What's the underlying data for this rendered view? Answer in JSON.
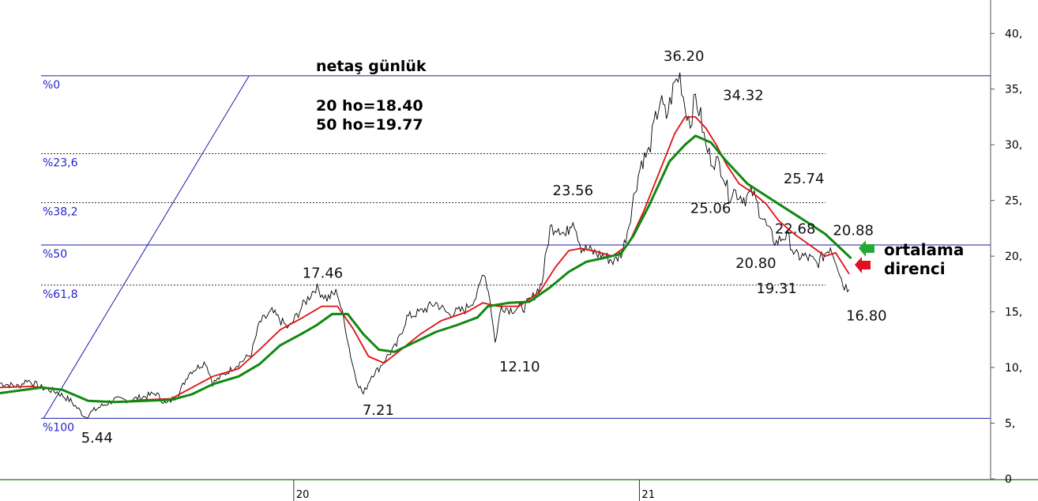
{
  "chart_data": {
    "type": "line",
    "title": "netaş günlük",
    "ma_notes": [
      "20 ho=18.40",
      "50 ho=19.77"
    ],
    "ylim": [
      0,
      43
    ],
    "y_ticks": [
      {
        "v": 40,
        "label": "40,"
      },
      {
        "v": 35,
        "label": "35,"
      },
      {
        "v": 30,
        "label": "30,"
      },
      {
        "v": 25,
        "label": "25,"
      },
      {
        "v": 20,
        "label": "20,"
      },
      {
        "v": 15,
        "label": "15,"
      },
      {
        "v": 10,
        "label": "10,"
      },
      {
        "v": 5,
        "label": "5,"
      },
      {
        "v": 0,
        "label": "0"
      }
    ],
    "x_ticks": [
      {
        "t": 0.283,
        "label": "20"
      },
      {
        "t": 0.616,
        "label": "21"
      }
    ],
    "fib_levels": [
      {
        "label": "%0",
        "value": 36.2,
        "style": "solid"
      },
      {
        "label": "%23,6",
        "value": 29.2,
        "style": "dashed"
      },
      {
        "label": "%38,2",
        "value": 24.8,
        "style": "dashed"
      },
      {
        "label": "%50",
        "value": 21.0,
        "style": "solid"
      },
      {
        "label": "%61,8",
        "value": 17.4,
        "style": "dashed"
      },
      {
        "label": "%100",
        "value": 5.44,
        "style": "solid"
      }
    ],
    "fib_anchor": {
      "low": {
        "t": 0.042,
        "v": 5.44
      },
      "high": {
        "t": 0.24,
        "v": 36.2
      }
    },
    "price": [
      [
        0.0,
        8.6
      ],
      [
        0.018,
        8.3
      ],
      [
        0.026,
        8.9
      ],
      [
        0.04,
        8.2
      ],
      [
        0.055,
        7.8
      ],
      [
        0.068,
        7.0
      ],
      [
        0.082,
        5.6
      ],
      [
        0.095,
        6.4
      ],
      [
        0.11,
        7.1
      ],
      [
        0.125,
        7.1
      ],
      [
        0.14,
        7.4
      ],
      [
        0.15,
        7.7
      ],
      [
        0.16,
        6.7
      ],
      [
        0.172,
        7.6
      ],
      [
        0.182,
        9.5
      ],
      [
        0.198,
        10.5
      ],
      [
        0.205,
        8.6
      ],
      [
        0.222,
        9.8
      ],
      [
        0.242,
        11.2
      ],
      [
        0.25,
        14.0
      ],
      [
        0.262,
        15.0
      ],
      [
        0.278,
        13.5
      ],
      [
        0.292,
        15.6
      ],
      [
        0.304,
        17.2
      ],
      [
        0.315,
        16.2
      ],
      [
        0.325,
        16.8
      ],
      [
        0.333,
        13.5
      ],
      [
        0.338,
        11.0
      ],
      [
        0.343,
        9.0
      ],
      [
        0.35,
        7.6
      ],
      [
        0.358,
        9.3
      ],
      [
        0.365,
        9.9
      ],
      [
        0.373,
        11.0
      ],
      [
        0.382,
        12.0
      ],
      [
        0.392,
        14.5
      ],
      [
        0.405,
        15.0
      ],
      [
        0.42,
        15.8
      ],
      [
        0.432,
        14.8
      ],
      [
        0.448,
        15.2
      ],
      [
        0.46,
        16.5
      ],
      [
        0.466,
        18.8
      ],
      [
        0.472,
        16.2
      ],
      [
        0.477,
        12.2
      ],
      [
        0.483,
        15.5
      ],
      [
        0.492,
        15.2
      ],
      [
        0.505,
        15.4
      ],
      [
        0.515,
        16.5
      ],
      [
        0.522,
        17.6
      ],
      [
        0.53,
        22.5
      ],
      [
        0.538,
        22.7
      ],
      [
        0.545,
        21.8
      ],
      [
        0.552,
        23.5
      ],
      [
        0.56,
        20.8
      ],
      [
        0.57,
        20.4
      ],
      [
        0.582,
        20.0
      ],
      [
        0.592,
        19.5
      ],
      [
        0.6,
        20.5
      ],
      [
        0.606,
        23.0
      ],
      [
        0.612,
        26.0
      ],
      [
        0.618,
        28.5
      ],
      [
        0.625,
        29.3
      ],
      [
        0.63,
        31.6
      ],
      [
        0.636,
        34.0
      ],
      [
        0.642,
        32.5
      ],
      [
        0.65,
        35.5
      ],
      [
        0.655,
        36.2
      ],
      [
        0.66,
        33.5
      ],
      [
        0.665,
        32.0
      ],
      [
        0.67,
        34.3
      ],
      [
        0.675,
        32.5
      ],
      [
        0.68,
        29.8
      ],
      [
        0.685,
        28.8
      ],
      [
        0.69,
        28.5
      ],
      [
        0.696,
        27.8
      ],
      [
        0.702,
        25.5
      ],
      [
        0.707,
        25.9
      ],
      [
        0.712,
        25.5
      ],
      [
        0.718,
        25.2
      ],
      [
        0.725,
        25.7
      ],
      [
        0.73,
        24.5
      ],
      [
        0.737,
        23.0
      ],
      [
        0.742,
        22.0
      ],
      [
        0.748,
        21.2
      ],
      [
        0.755,
        21.8
      ],
      [
        0.76,
        21.6
      ],
      [
        0.766,
        20.0
      ],
      [
        0.773,
        20.0
      ],
      [
        0.78,
        19.8
      ],
      [
        0.787,
        19.3
      ],
      [
        0.793,
        20.0
      ],
      [
        0.8,
        20.9
      ],
      [
        0.806,
        19.5
      ],
      [
        0.812,
        17.5
      ],
      [
        0.818,
        17.0
      ]
    ],
    "series": [
      {
        "name": "20 ho",
        "color": "#e01010",
        "values": [
          [
            0.0,
            8.2
          ],
          [
            0.03,
            8.3
          ],
          [
            0.06,
            8.0
          ],
          [
            0.085,
            7.0
          ],
          [
            0.11,
            6.9
          ],
          [
            0.14,
            7.1
          ],
          [
            0.165,
            7.2
          ],
          [
            0.185,
            8.2
          ],
          [
            0.205,
            9.2
          ],
          [
            0.23,
            9.9
          ],
          [
            0.25,
            11.6
          ],
          [
            0.27,
            13.4
          ],
          [
            0.29,
            14.4
          ],
          [
            0.31,
            15.5
          ],
          [
            0.325,
            15.5
          ],
          [
            0.34,
            13.5
          ],
          [
            0.355,
            11.0
          ],
          [
            0.37,
            10.4
          ],
          [
            0.385,
            11.5
          ],
          [
            0.405,
            13.0
          ],
          [
            0.425,
            14.2
          ],
          [
            0.45,
            15.0
          ],
          [
            0.465,
            15.8
          ],
          [
            0.48,
            15.5
          ],
          [
            0.5,
            15.5
          ],
          [
            0.52,
            16.8
          ],
          [
            0.535,
            19.0
          ],
          [
            0.548,
            20.5
          ],
          [
            0.56,
            20.7
          ],
          [
            0.575,
            20.4
          ],
          [
            0.59,
            20.0
          ],
          [
            0.605,
            21.0
          ],
          [
            0.62,
            24.0
          ],
          [
            0.635,
            27.5
          ],
          [
            0.65,
            31.0
          ],
          [
            0.66,
            32.5
          ],
          [
            0.67,
            32.5
          ],
          [
            0.68,
            31.5
          ],
          [
            0.69,
            30.0
          ],
          [
            0.7,
            28.2
          ],
          [
            0.712,
            26.5
          ],
          [
            0.725,
            25.7
          ],
          [
            0.738,
            24.7
          ],
          [
            0.75,
            23.2
          ],
          [
            0.765,
            22.0
          ],
          [
            0.78,
            21.0
          ],
          [
            0.795,
            20.0
          ],
          [
            0.805,
            20.3
          ],
          [
            0.818,
            18.4
          ]
        ]
      },
      {
        "name": "50 ho",
        "color": "#118811",
        "values": [
          [
            0.0,
            7.7
          ],
          [
            0.04,
            8.2
          ],
          [
            0.06,
            8.0
          ],
          [
            0.085,
            7.0
          ],
          [
            0.11,
            6.9
          ],
          [
            0.14,
            7.0
          ],
          [
            0.165,
            7.1
          ],
          [
            0.185,
            7.6
          ],
          [
            0.205,
            8.5
          ],
          [
            0.23,
            9.2
          ],
          [
            0.25,
            10.3
          ],
          [
            0.27,
            12.0
          ],
          [
            0.29,
            13.0
          ],
          [
            0.305,
            13.8
          ],
          [
            0.32,
            14.8
          ],
          [
            0.335,
            14.8
          ],
          [
            0.35,
            13.0
          ],
          [
            0.365,
            11.6
          ],
          [
            0.38,
            11.4
          ],
          [
            0.4,
            12.3
          ],
          [
            0.42,
            13.2
          ],
          [
            0.44,
            13.8
          ],
          [
            0.46,
            14.5
          ],
          [
            0.47,
            15.5
          ],
          [
            0.49,
            15.8
          ],
          [
            0.51,
            15.9
          ],
          [
            0.53,
            17.2
          ],
          [
            0.548,
            18.6
          ],
          [
            0.565,
            19.5
          ],
          [
            0.58,
            19.8
          ],
          [
            0.598,
            20.2
          ],
          [
            0.61,
            21.8
          ],
          [
            0.625,
            24.5
          ],
          [
            0.645,
            28.5
          ],
          [
            0.66,
            30.0
          ],
          [
            0.67,
            30.8
          ],
          [
            0.685,
            30.2
          ],
          [
            0.7,
            28.5
          ],
          [
            0.72,
            26.5
          ],
          [
            0.745,
            25.0
          ],
          [
            0.77,
            23.5
          ],
          [
            0.795,
            22.0
          ],
          [
            0.82,
            19.8
          ]
        ]
      }
    ],
    "annotations": [
      {
        "text": "36.20",
        "t": 0.655,
        "v": 36.2,
        "dx": 5,
        "dy": -19
      },
      {
        "text": "34.32",
        "t": 0.675,
        "v": 34.3,
        "dx": 54,
        "dy": 4
      },
      {
        "text": "23.56",
        "t": 0.552,
        "v": 23.5,
        "dx": 0,
        "dy": -28
      },
      {
        "text": "25.74",
        "t": 0.725,
        "v": 25.7,
        "dx": 65,
        "dy": -12
      },
      {
        "text": "25.06",
        "t": 0.712,
        "v": 25.5,
        "dx": -36,
        "dy": 23
      },
      {
        "text": "22.68",
        "t": 0.76,
        "v": 21.6,
        "dx": 8,
        "dy": -6
      },
      {
        "text": "20.88",
        "t": 0.8,
        "v": 20.9,
        "dx": 29,
        "dy": -14
      },
      {
        "text": "20.80",
        "t": 0.748,
        "v": 21.2,
        "dx": -26,
        "dy": 32
      },
      {
        "text": "19.31",
        "t": 0.787,
        "v": 19.3,
        "dx": -51,
        "dy": 37
      },
      {
        "text": "16.80",
        "t": 0.818,
        "v": 17.0,
        "dx": 22,
        "dy": 39
      },
      {
        "text": "17.46",
        "t": 0.304,
        "v": 17.2,
        "dx": 9,
        "dy": -12
      },
      {
        "text": "12.10",
        "t": 0.477,
        "v": 12.2,
        "dx": 31,
        "dy": 36
      },
      {
        "text": "7.21",
        "t": 0.35,
        "v": 7.6,
        "dx": 19,
        "dy": 26
      },
      {
        "text": "5.44",
        "t": 0.082,
        "v": 5.6,
        "dx": 15,
        "dy": 33
      }
    ],
    "side_note": [
      "ortalama",
      "direnci"
    ],
    "arrows": [
      {
        "color": "#22aa33",
        "direction": "left"
      },
      {
        "color": "#e01020",
        "direction": "left"
      }
    ]
  }
}
